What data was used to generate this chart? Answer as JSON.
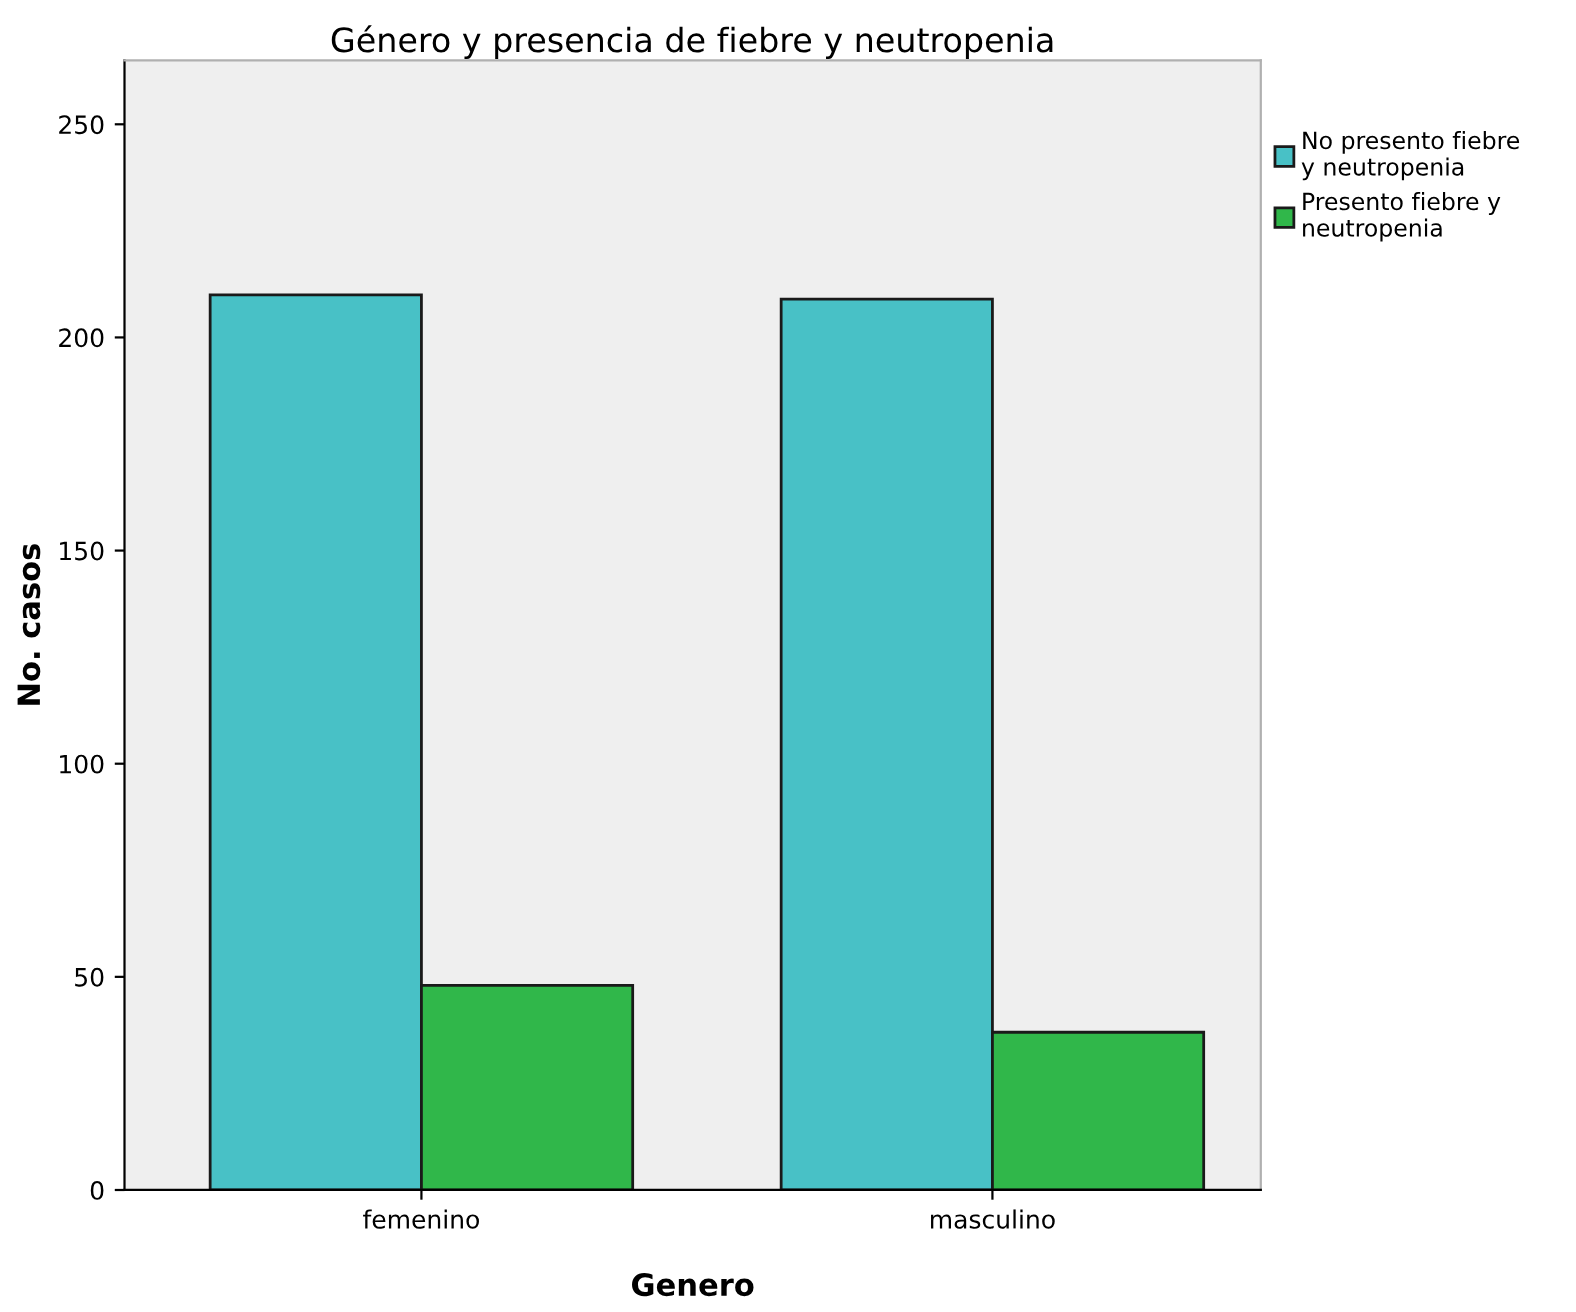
{
  "chart_data": {
    "type": "bar",
    "title": "Género y presencia de fiebre y neutropenia",
    "xlabel": "Genero",
    "ylabel": "No. casos",
    "categories": [
      "femenino",
      "masculino"
    ],
    "series": [
      {
        "name": "No presento fiebre y neutropenia",
        "color": "#48c1c6",
        "values": [
          210,
          209
        ]
      },
      {
        "name": "Presento fiebre y neutropenia",
        "color": "#30b74a",
        "values": [
          48,
          37
        ]
      }
    ],
    "ylim": [
      0,
      265
    ],
    "yticks": [
      0,
      50,
      100,
      150,
      200,
      250
    ],
    "grid": false,
    "legend": "top right"
  }
}
